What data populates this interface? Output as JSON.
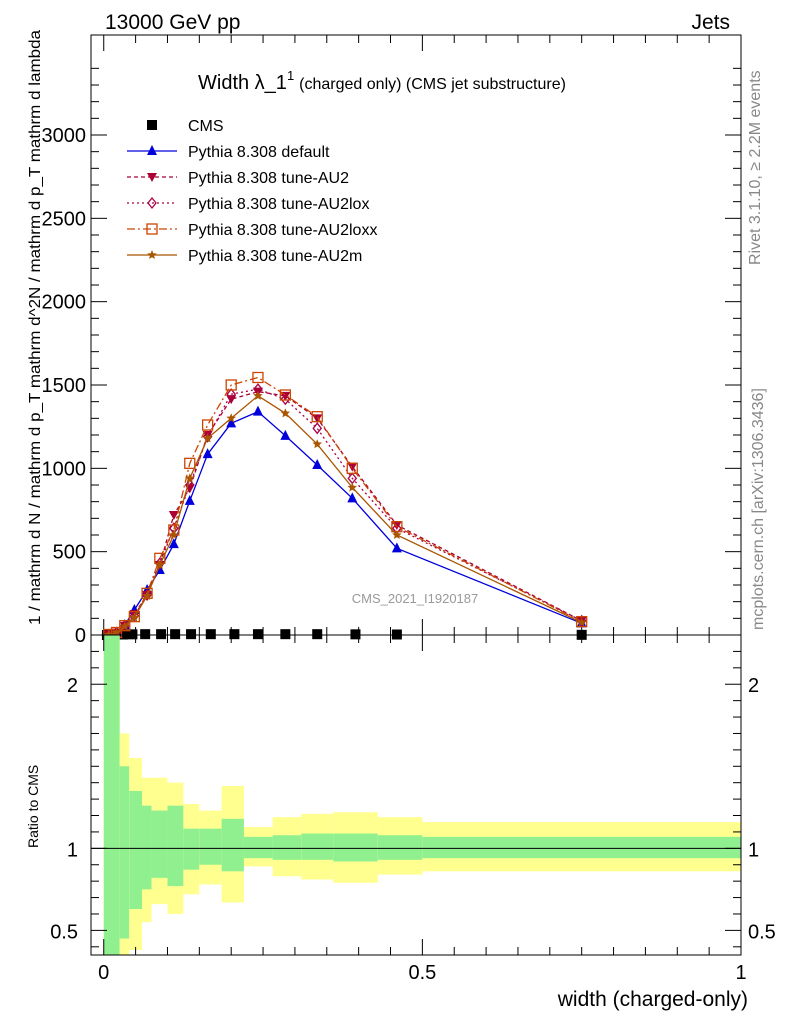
{
  "header": {
    "left": "13000 GeV pp",
    "right": "Jets"
  },
  "title": {
    "main": "Width λ_1",
    "sup": "1",
    "rest": "(charged only) (CMS jet substructure)"
  },
  "ylabel_main": "1 / mathrm d N / mathrm d p_T  mathrm d^2N / mathrm d p_T mathrm d lambda",
  "ylabel_ratio": "Ratio to CMS",
  "xlabel": "width (charged-only)",
  "side_text": {
    "top": "Rivet 3.1.10, ≥ 2.2M events",
    "bottom": "mcplots.cern.ch [arXiv:1306.3436]"
  },
  "watermark": "CMS_2021_I1920187",
  "colors": {
    "default": "#0000dd",
    "au2": "#aa0033",
    "au2lox": "#aa0044",
    "au2loxx": "#cc4400",
    "au2m": "#aa5500",
    "band_green": "#90f090",
    "band_yellow": "#ffff90"
  },
  "chart_data": {
    "type": "line",
    "main": {
      "xlim": [
        -0.02,
        1.0
      ],
      "ylim": [
        0,
        3600
      ],
      "x_ticks": [
        0,
        0.5,
        1
      ],
      "x_tick_labels": [
        "0",
        "0.5",
        "1"
      ],
      "y_ticks": [
        0,
        500,
        1000,
        1500,
        2000,
        2500,
        3000
      ],
      "y_tick_labels": [
        "0",
        "500",
        "1000",
        "1500",
        "2000",
        "2500",
        "3000"
      ],
      "legend": "top-left",
      "series": [
        {
          "name": "CMS",
          "marker": "square",
          "color": "#000000",
          "x": [
            0.005,
            0.017,
            0.03,
            0.045,
            0.065,
            0.09,
            0.112,
            0.137,
            0.168,
            0.205,
            0.242,
            0.285,
            0.335,
            0.395,
            0.46,
            0.75
          ],
          "y": [
            0,
            2,
            3,
            4,
            5,
            5,
            5,
            5,
            5,
            5,
            5,
            5,
            5,
            4,
            3,
            1
          ]
        },
        {
          "name": "Pythia 8.308 default",
          "marker": "triangle-up",
          "color": "#0000dd",
          "x": [
            0.008,
            0.02,
            0.033,
            0.048,
            0.068,
            0.088,
            0.11,
            0.135,
            0.163,
            0.2,
            0.242,
            0.285,
            0.335,
            0.39,
            0.46,
            0.75
          ],
          "y": [
            3,
            15,
            60,
            150,
            270,
            390,
            545,
            805,
            1085,
            1270,
            1340,
            1195,
            1020,
            820,
            520,
            70
          ]
        },
        {
          "name": "Pythia 8.308 tune-AU2",
          "marker": "triangle-down",
          "color": "#aa0033",
          "x": [
            0.008,
            0.02,
            0.033,
            0.048,
            0.068,
            0.088,
            0.11,
            0.135,
            0.163,
            0.2,
            0.242,
            0.285,
            0.335,
            0.39,
            0.46,
            0.75
          ],
          "y": [
            3,
            14,
            55,
            125,
            240,
            420,
            720,
            880,
            1200,
            1415,
            1460,
            1435,
            1300,
            1010,
            660,
            85
          ]
        },
        {
          "name": "Pythia 8.308 tune-AU2lox",
          "marker": "diamond-open",
          "color": "#aa0044",
          "x": [
            0.008,
            0.02,
            0.033,
            0.048,
            0.068,
            0.088,
            0.11,
            0.135,
            0.163,
            0.2,
            0.242,
            0.285,
            0.335,
            0.39,
            0.46,
            0.75
          ],
          "y": [
            3,
            14,
            56,
            115,
            240,
            430,
            640,
            900,
            1190,
            1445,
            1475,
            1415,
            1240,
            940,
            640,
            85
          ]
        },
        {
          "name": "Pythia 8.308 tune-AU2loxx",
          "marker": "square-open",
          "color": "#cc4400",
          "x": [
            0.008,
            0.02,
            0.033,
            0.048,
            0.068,
            0.088,
            0.11,
            0.135,
            0.163,
            0.2,
            0.242,
            0.285,
            0.335,
            0.39,
            0.46,
            0.75
          ],
          "y": [
            3,
            15,
            56,
            110,
            250,
            460,
            630,
            1030,
            1260,
            1500,
            1545,
            1440,
            1310,
            1000,
            650,
            80
          ]
        },
        {
          "name": "Pythia 8.308 tune-AU2m",
          "marker": "star",
          "color": "#aa5500",
          "x": [
            0.008,
            0.02,
            0.033,
            0.048,
            0.068,
            0.088,
            0.11,
            0.135,
            0.163,
            0.2,
            0.242,
            0.285,
            0.335,
            0.39,
            0.46,
            0.75
          ],
          "y": [
            3,
            14,
            52,
            105,
            235,
            420,
            600,
            940,
            1180,
            1300,
            1435,
            1330,
            1145,
            885,
            600,
            75
          ]
        }
      ]
    },
    "ratio": {
      "ylim": [
        0.35,
        2.3
      ],
      "y_ticks": [
        0.5,
        1,
        2
      ],
      "y_tick_labels": [
        "0.5",
        "1",
        "2"
      ],
      "bins": [
        {
          "x0": 0.0,
          "x1": 0.025,
          "green": [
            0.3,
            2.5
          ],
          "yellow": [
            0.3,
            2.5
          ]
        },
        {
          "x0": 0.025,
          "x1": 0.04,
          "green": [
            0.45,
            1.5
          ],
          "yellow": [
            0.3,
            1.7
          ]
        },
        {
          "x0": 0.04,
          "x1": 0.06,
          "green": [
            0.63,
            1.35
          ],
          "yellow": [
            0.38,
            1.55
          ]
        },
        {
          "x0": 0.06,
          "x1": 0.075,
          "green": [
            0.75,
            1.26
          ],
          "yellow": [
            0.55,
            1.43
          ]
        },
        {
          "x0": 0.075,
          "x1": 0.1,
          "green": [
            0.82,
            1.23
          ],
          "yellow": [
            0.66,
            1.43
          ]
        },
        {
          "x0": 0.1,
          "x1": 0.125,
          "green": [
            0.77,
            1.26
          ],
          "yellow": [
            0.6,
            1.4
          ]
        },
        {
          "x0": 0.125,
          "x1": 0.15,
          "green": [
            0.87,
            1.12
          ],
          "yellow": [
            0.72,
            1.27
          ]
        },
        {
          "x0": 0.15,
          "x1": 0.185,
          "green": [
            0.9,
            1.12
          ],
          "yellow": [
            0.78,
            1.23
          ]
        },
        {
          "x0": 0.185,
          "x1": 0.22,
          "green": [
            0.86,
            1.18
          ],
          "yellow": [
            0.67,
            1.38
          ]
        },
        {
          "x0": 0.22,
          "x1": 0.265,
          "green": [
            0.94,
            1.07
          ],
          "yellow": [
            0.89,
            1.13
          ]
        },
        {
          "x0": 0.265,
          "x1": 0.31,
          "green": [
            0.93,
            1.08
          ],
          "yellow": [
            0.83,
            1.19
          ]
        },
        {
          "x0": 0.31,
          "x1": 0.36,
          "green": [
            0.93,
            1.09
          ],
          "yellow": [
            0.81,
            1.21
          ]
        },
        {
          "x0": 0.36,
          "x1": 0.43,
          "green": [
            0.92,
            1.09
          ],
          "yellow": [
            0.79,
            1.22
          ]
        },
        {
          "x0": 0.43,
          "x1": 0.5,
          "green": [
            0.93,
            1.08
          ],
          "yellow": [
            0.84,
            1.19
          ]
        },
        {
          "x0": 0.5,
          "x1": 1.0,
          "green": [
            0.94,
            1.07
          ],
          "yellow": [
            0.86,
            1.16
          ]
        }
      ]
    }
  }
}
